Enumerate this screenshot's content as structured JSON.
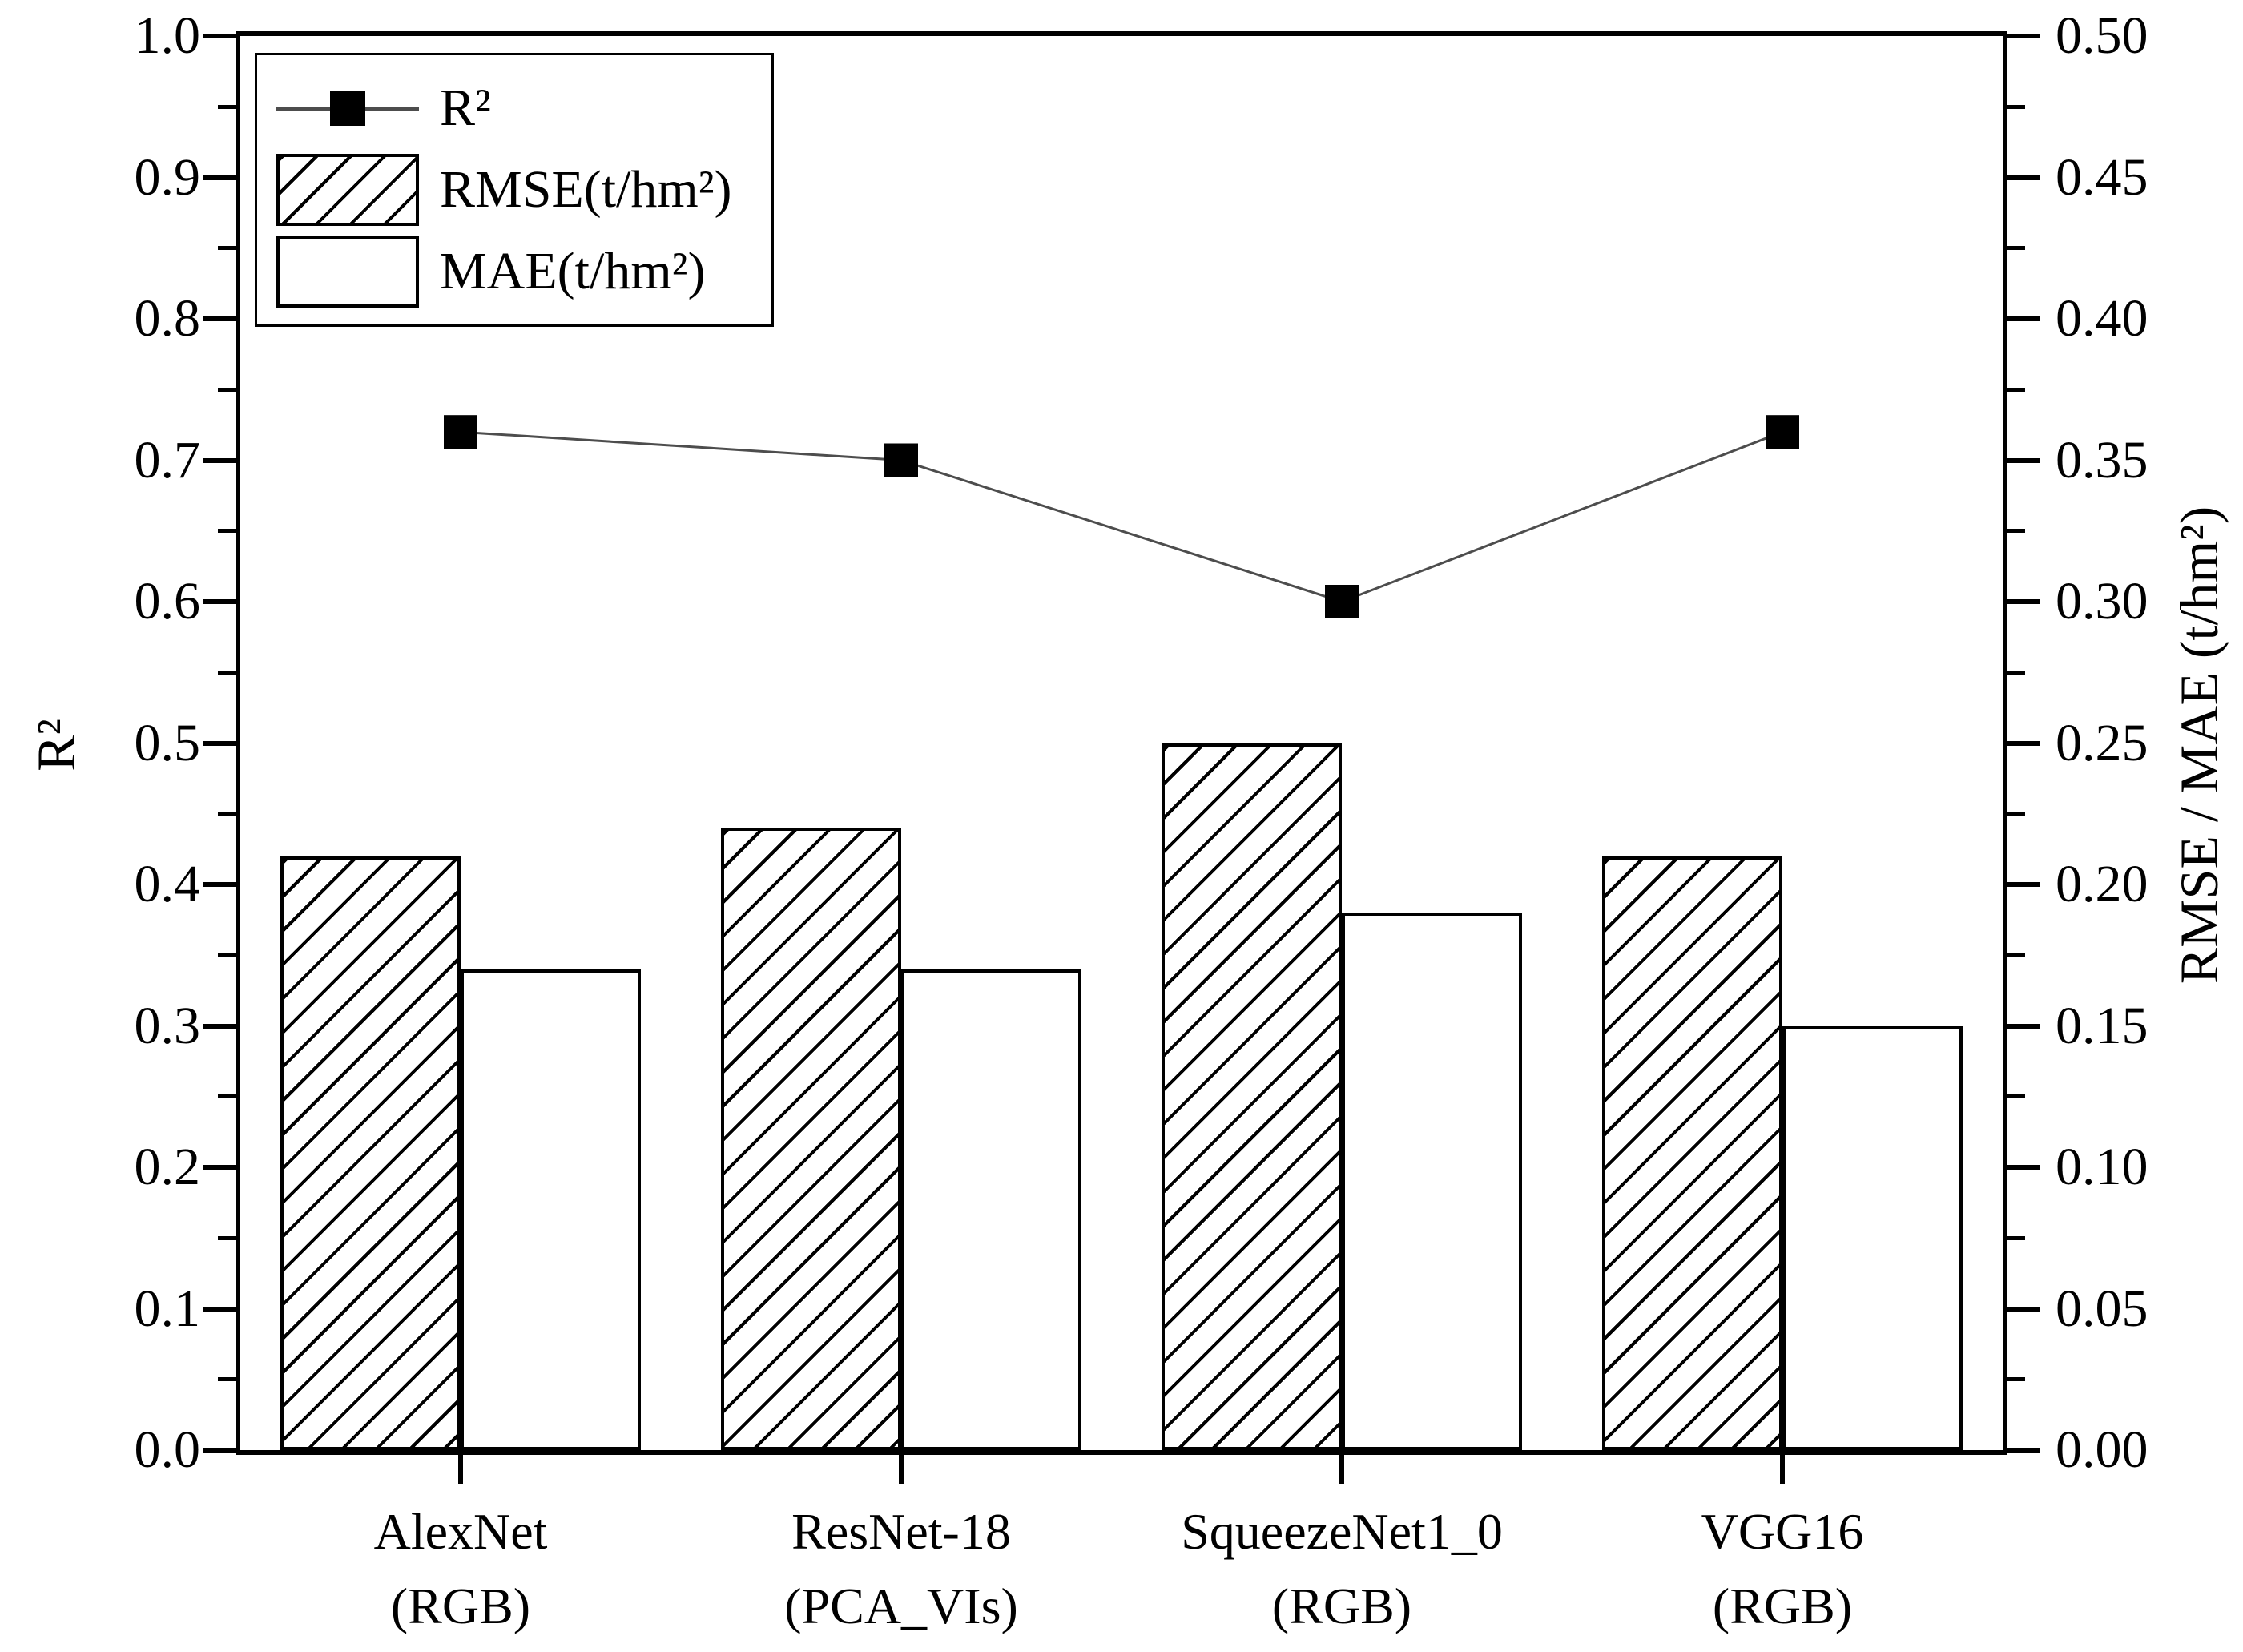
{
  "figure": {
    "background": "#ffffff"
  },
  "legend": {
    "position": "top-left",
    "items": [
      {
        "label": "R²",
        "swatch": "line-with-filled-square-marker"
      },
      {
        "label": "RMSE(t/hm²)",
        "swatch": "diagonal-hatched-bar"
      },
      {
        "label": "MAE(t/hm²)",
        "swatch": "open-white-bar"
      }
    ]
  },
  "chart_data": {
    "type": "bar",
    "subtype": "combo-bar-line-dual-axis",
    "categories": [
      "AlexNet\n(RGB)",
      "ResNet-18\n(PCA_VIs)",
      "SqueezeNet1_0\n(RGB)",
      "VGG16\n(RGB)"
    ],
    "series": [
      {
        "name": "R²",
        "type": "line",
        "axis": "left",
        "marker": "filled-square",
        "values": [
          0.72,
          0.7,
          0.6,
          0.72
        ]
      },
      {
        "name": "RMSE(t/hm²)",
        "type": "bar",
        "axis": "right",
        "fill": "diagonal-hatch",
        "values": [
          0.21,
          0.22,
          0.25,
          0.21
        ]
      },
      {
        "name": "MAE(t/hm²)",
        "type": "bar",
        "axis": "right",
        "fill": "white",
        "values": [
          0.17,
          0.17,
          0.19,
          0.15
        ]
      }
    ],
    "left_axis": {
      "title": "R²",
      "min": 0.0,
      "max": 1.0,
      "major_step": 0.1,
      "minor_per_gap": 1,
      "tick_labels": [
        "1.0",
        "0.9",
        "0.8",
        "0.7",
        "0.6",
        "0.5",
        "0.4",
        "0.3",
        "0.2",
        "0.1",
        "0.0"
      ]
    },
    "right_axis": {
      "title": "RMSE / MAE (t/hm²)",
      "min": 0.0,
      "max": 0.5,
      "major_step": 0.05,
      "minor_per_gap": 1,
      "tick_labels": [
        "0.50",
        "0.45",
        "0.40",
        "0.35",
        "0.30",
        "0.25",
        "0.20",
        "0.15",
        "0.10",
        "0.05",
        "0.00"
      ]
    },
    "grid": false,
    "legend_position": "top-left"
  },
  "colors": {
    "axis": "#000000",
    "bar_border": "#000000",
    "marker": "#000000",
    "line": "#4d4d4d",
    "background": "#ffffff"
  }
}
